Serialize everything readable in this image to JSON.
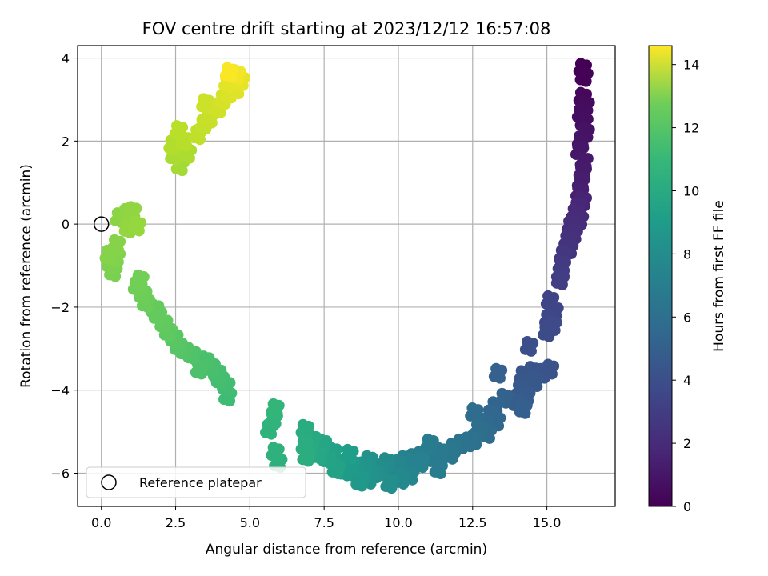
{
  "chart_data": {
    "type": "scatter",
    "title": "FOV centre drift starting at 2023/12/12 16:57:08",
    "xlabel": "Angular distance from reference (arcmin)",
    "ylabel": "Rotation from reference (arcmin)",
    "xlim": [
      -0.8,
      17.3
    ],
    "ylim": [
      -6.8,
      4.3
    ],
    "xticks": [
      "0.0",
      "2.5",
      "5.0",
      "7.5",
      "10.0",
      "12.5",
      "15.0"
    ],
    "yticks": [
      "−6",
      "−4",
      "−2",
      "0",
      "2",
      "4"
    ],
    "grid": true,
    "legend": {
      "position": "lower-left",
      "entries": [
        "Reference platepar"
      ]
    },
    "reference_point": {
      "x": 0.0,
      "y": 0.0
    },
    "colorbar": {
      "label": "Hours from first FF file",
      "colormap": "viridis",
      "range": [
        0,
        14.6
      ],
      "ticks": [
        "0",
        "2",
        "4",
        "6",
        "8",
        "10",
        "12",
        "14"
      ]
    },
    "points": [
      {
        "x": 16.2,
        "y": 3.75,
        "c": 0.0
      },
      {
        "x": 16.25,
        "y": 3.55,
        "c": 0.1
      },
      {
        "x": 16.2,
        "y": 3.05,
        "c": 0.3
      },
      {
        "x": 16.3,
        "y": 2.85,
        "c": 0.4
      },
      {
        "x": 16.15,
        "y": 2.65,
        "c": 0.5
      },
      {
        "x": 16.25,
        "y": 2.45,
        "c": 0.6
      },
      {
        "x": 16.3,
        "y": 2.2,
        "c": 0.7
      },
      {
        "x": 16.15,
        "y": 2.0,
        "c": 0.8
      },
      {
        "x": 16.1,
        "y": 1.75,
        "c": 0.9
      },
      {
        "x": 16.25,
        "y": 1.5,
        "c": 1.0
      },
      {
        "x": 16.2,
        "y": 1.25,
        "c": 1.1
      },
      {
        "x": 16.15,
        "y": 1.0,
        "c": 1.2
      },
      {
        "x": 16.1,
        "y": 0.75,
        "c": 1.3
      },
      {
        "x": 16.2,
        "y": 0.55,
        "c": 1.45
      },
      {
        "x": 16.05,
        "y": 0.4,
        "c": 1.6
      },
      {
        "x": 15.95,
        "y": 0.25,
        "c": 1.7
      },
      {
        "x": 16.1,
        "y": 0.1,
        "c": 1.8
      },
      {
        "x": 15.8,
        "y": -0.05,
        "c": 1.9
      },
      {
        "x": 15.9,
        "y": -0.25,
        "c": 2.0
      },
      {
        "x": 15.7,
        "y": -0.4,
        "c": 2.1
      },
      {
        "x": 15.75,
        "y": -0.6,
        "c": 2.2
      },
      {
        "x": 15.55,
        "y": -0.75,
        "c": 2.35
      },
      {
        "x": 15.5,
        "y": -1.0,
        "c": 2.5
      },
      {
        "x": 15.45,
        "y": -1.2,
        "c": 2.6
      },
      {
        "x": 15.45,
        "y": -1.35,
        "c": 2.7
      },
      {
        "x": 15.1,
        "y": -1.85,
        "c": 3.0
      },
      {
        "x": 15.25,
        "y": -2.1,
        "c": 3.1
      },
      {
        "x": 15.05,
        "y": -2.3,
        "c": 3.2
      },
      {
        "x": 15.2,
        "y": -2.45,
        "c": 3.3
      },
      {
        "x": 15.0,
        "y": -2.6,
        "c": 3.4
      },
      {
        "x": 14.4,
        "y": -2.95,
        "c": 3.6
      },
      {
        "x": 15.1,
        "y": -3.5,
        "c": 3.75
      },
      {
        "x": 14.85,
        "y": -3.6,
        "c": 3.8
      },
      {
        "x": 14.5,
        "y": -3.55,
        "c": 3.85
      },
      {
        "x": 14.2,
        "y": -3.65,
        "c": 3.9
      },
      {
        "x": 14.6,
        "y": -3.8,
        "c": 4.0
      },
      {
        "x": 14.3,
        "y": -3.85,
        "c": 4.05
      },
      {
        "x": 14.1,
        "y": -4.0,
        "c": 4.1
      },
      {
        "x": 14.3,
        "y": -4.15,
        "c": 4.2
      },
      {
        "x": 14.0,
        "y": -4.3,
        "c": 4.3
      },
      {
        "x": 14.2,
        "y": -4.45,
        "c": 4.4
      },
      {
        "x": 13.35,
        "y": -3.6,
        "c": 4.5
      },
      {
        "x": 13.55,
        "y": -4.2,
        "c": 4.6
      },
      {
        "x": 13.25,
        "y": -4.4,
        "c": 4.7
      },
      {
        "x": 13.1,
        "y": -4.6,
        "c": 4.8
      },
      {
        "x": 13.3,
        "y": -4.75,
        "c": 4.9
      },
      {
        "x": 12.9,
        "y": -4.8,
        "c": 5.0
      },
      {
        "x": 13.0,
        "y": -5.05,
        "c": 5.1
      },
      {
        "x": 12.55,
        "y": -4.55,
        "c": 5.2
      },
      {
        "x": 12.7,
        "y": -4.95,
        "c": 5.3
      },
      {
        "x": 12.55,
        "y": -5.2,
        "c": 5.4
      },
      {
        "x": 12.35,
        "y": -5.25,
        "c": 5.5
      },
      {
        "x": 12.1,
        "y": -5.3,
        "c": 5.6
      },
      {
        "x": 11.85,
        "y": -5.4,
        "c": 5.7
      },
      {
        "x": 11.75,
        "y": -5.55,
        "c": 5.8
      },
      {
        "x": 11.4,
        "y": -5.5,
        "c": 5.9
      },
      {
        "x": 11.2,
        "y": -5.65,
        "c": 6.0
      },
      {
        "x": 11.05,
        "y": -5.3,
        "c": 6.05
      },
      {
        "x": 11.35,
        "y": -5.9,
        "c": 6.1
      },
      {
        "x": 10.75,
        "y": -5.6,
        "c": 6.2
      },
      {
        "x": 10.5,
        "y": -5.65,
        "c": 6.3
      },
      {
        "x": 10.75,
        "y": -5.75,
        "c": 6.4
      },
      {
        "x": 10.2,
        "y": -5.7,
        "c": 6.5
      },
      {
        "x": 10.4,
        "y": -6.05,
        "c": 6.6
      },
      {
        "x": 10.0,
        "y": -5.8,
        "c": 6.7
      },
      {
        "x": 9.85,
        "y": -6.0,
        "c": 6.8
      },
      {
        "x": 10.1,
        "y": -6.15,
        "c": 6.9
      },
      {
        "x": 9.6,
        "y": -5.75,
        "c": 7.0
      },
      {
        "x": 9.4,
        "y": -5.9,
        "c": 7.1
      },
      {
        "x": 9.7,
        "y": -6.25,
        "c": 7.2
      },
      {
        "x": 9.2,
        "y": -6.0,
        "c": 7.3
      },
      {
        "x": 9.0,
        "y": -5.7,
        "c": 7.4
      },
      {
        "x": 9.0,
        "y": -6.15,
        "c": 7.5
      },
      {
        "x": 8.8,
        "y": -5.85,
        "c": 7.6
      },
      {
        "x": 8.6,
        "y": -6.0,
        "c": 7.7
      },
      {
        "x": 8.7,
        "y": -6.2,
        "c": 7.8
      },
      {
        "x": 8.4,
        "y": -5.8,
        "c": 7.9
      },
      {
        "x": 8.2,
        "y": -5.95,
        "c": 8.0
      },
      {
        "x": 8.35,
        "y": -5.55,
        "c": 8.1
      },
      {
        "x": 8.0,
        "y": -5.75,
        "c": 8.2
      },
      {
        "x": 7.8,
        "y": -5.5,
        "c": 8.3
      },
      {
        "x": 7.9,
        "y": -5.9,
        "c": 8.4
      },
      {
        "x": 7.6,
        "y": -5.65,
        "c": 8.5
      },
      {
        "x": 7.45,
        "y": -5.3,
        "c": 8.6
      },
      {
        "x": 7.3,
        "y": -5.55,
        "c": 8.7
      },
      {
        "x": 7.1,
        "y": -5.2,
        "c": 8.8
      },
      {
        "x": 7.0,
        "y": -5.45,
        "c": 8.9
      },
      {
        "x": 6.85,
        "y": -4.95,
        "c": 9.0
      },
      {
        "x": 6.85,
        "y": -5.35,
        "c": 9.05
      },
      {
        "x": 6.9,
        "y": -5.6,
        "c": 9.1
      },
      {
        "x": 5.95,
        "y": -5.75,
        "c": 9.2
      },
      {
        "x": 5.85,
        "y": -5.5,
        "c": 9.3
      },
      {
        "x": 5.65,
        "y": -4.95,
        "c": 9.4
      },
      {
        "x": 5.8,
        "y": -4.7,
        "c": 9.5
      },
      {
        "x": 5.85,
        "y": -4.45,
        "c": 9.6
      },
      {
        "x": 4.25,
        "y": -4.15,
        "c": 10.0
      },
      {
        "x": 4.2,
        "y": -3.9,
        "c": 10.1
      },
      {
        "x": 4.0,
        "y": -3.75,
        "c": 10.15
      },
      {
        "x": 3.9,
        "y": -3.6,
        "c": 10.2
      },
      {
        "x": 3.7,
        "y": -3.45,
        "c": 10.3
      },
      {
        "x": 3.5,
        "y": -3.3,
        "c": 10.35
      },
      {
        "x": 3.3,
        "y": -3.5,
        "c": 10.4
      },
      {
        "x": 3.05,
        "y": -3.15,
        "c": 10.5
      },
      {
        "x": 2.8,
        "y": -3.05,
        "c": 10.6
      },
      {
        "x": 2.6,
        "y": -2.95,
        "c": 10.7
      },
      {
        "x": 2.45,
        "y": -2.75,
        "c": 10.8
      },
      {
        "x": 2.25,
        "y": -2.6,
        "c": 10.9
      },
      {
        "x": 2.1,
        "y": -2.4,
        "c": 11.0
      },
      {
        "x": 1.9,
        "y": -2.2,
        "c": 11.05
      },
      {
        "x": 1.8,
        "y": -2.05,
        "c": 11.1
      },
      {
        "x": 1.5,
        "y": -1.9,
        "c": 11.2
      },
      {
        "x": 1.4,
        "y": -1.7,
        "c": 11.3
      },
      {
        "x": 1.2,
        "y": -1.5,
        "c": 11.4
      },
      {
        "x": 1.3,
        "y": -1.35,
        "c": 11.45
      },
      {
        "x": 0.4,
        "y": -1.15,
        "c": 11.6
      },
      {
        "x": 0.3,
        "y": -0.95,
        "c": 11.7
      },
      {
        "x": 0.5,
        "y": -0.8,
        "c": 11.8
      },
      {
        "x": 0.25,
        "y": -0.75,
        "c": 11.85
      },
      {
        "x": 0.5,
        "y": -0.5,
        "c": 11.9
      },
      {
        "x": 0.6,
        "y": 0.15,
        "c": 12.0
      },
      {
        "x": 0.85,
        "y": 0.25,
        "c": 12.1
      },
      {
        "x": 1.05,
        "y": 0.3,
        "c": 12.15
      },
      {
        "x": 0.9,
        "y": -0.1,
        "c": 12.2
      },
      {
        "x": 1.2,
        "y": -0.05,
        "c": 12.25
      },
      {
        "x": 2.65,
        "y": 1.4,
        "c": 12.6
      },
      {
        "x": 2.45,
        "y": 1.65,
        "c": 12.7
      },
      {
        "x": 2.9,
        "y": 1.7,
        "c": 12.8
      },
      {
        "x": 2.4,
        "y": 1.9,
        "c": 12.9
      },
      {
        "x": 2.8,
        "y": 2.0,
        "c": 13.0
      },
      {
        "x": 2.6,
        "y": 2.25,
        "c": 13.1
      },
      {
        "x": 3.25,
        "y": 2.15,
        "c": 13.2
      },
      {
        "x": 3.45,
        "y": 2.4,
        "c": 13.3
      },
      {
        "x": 3.65,
        "y": 2.55,
        "c": 13.4
      },
      {
        "x": 3.5,
        "y": 2.9,
        "c": 13.5
      },
      {
        "x": 3.95,
        "y": 2.8,
        "c": 13.6
      },
      {
        "x": 4.1,
        "y": 3.0,
        "c": 13.7
      },
      {
        "x": 4.3,
        "y": 3.15,
        "c": 13.8
      },
      {
        "x": 4.55,
        "y": 3.25,
        "c": 13.9
      },
      {
        "x": 4.25,
        "y": 3.4,
        "c": 14.0
      },
      {
        "x": 4.7,
        "y": 3.45,
        "c": 14.1
      },
      {
        "x": 4.55,
        "y": 3.6,
        "c": 14.3
      },
      {
        "x": 4.3,
        "y": 3.65,
        "c": 14.5
      }
    ]
  }
}
